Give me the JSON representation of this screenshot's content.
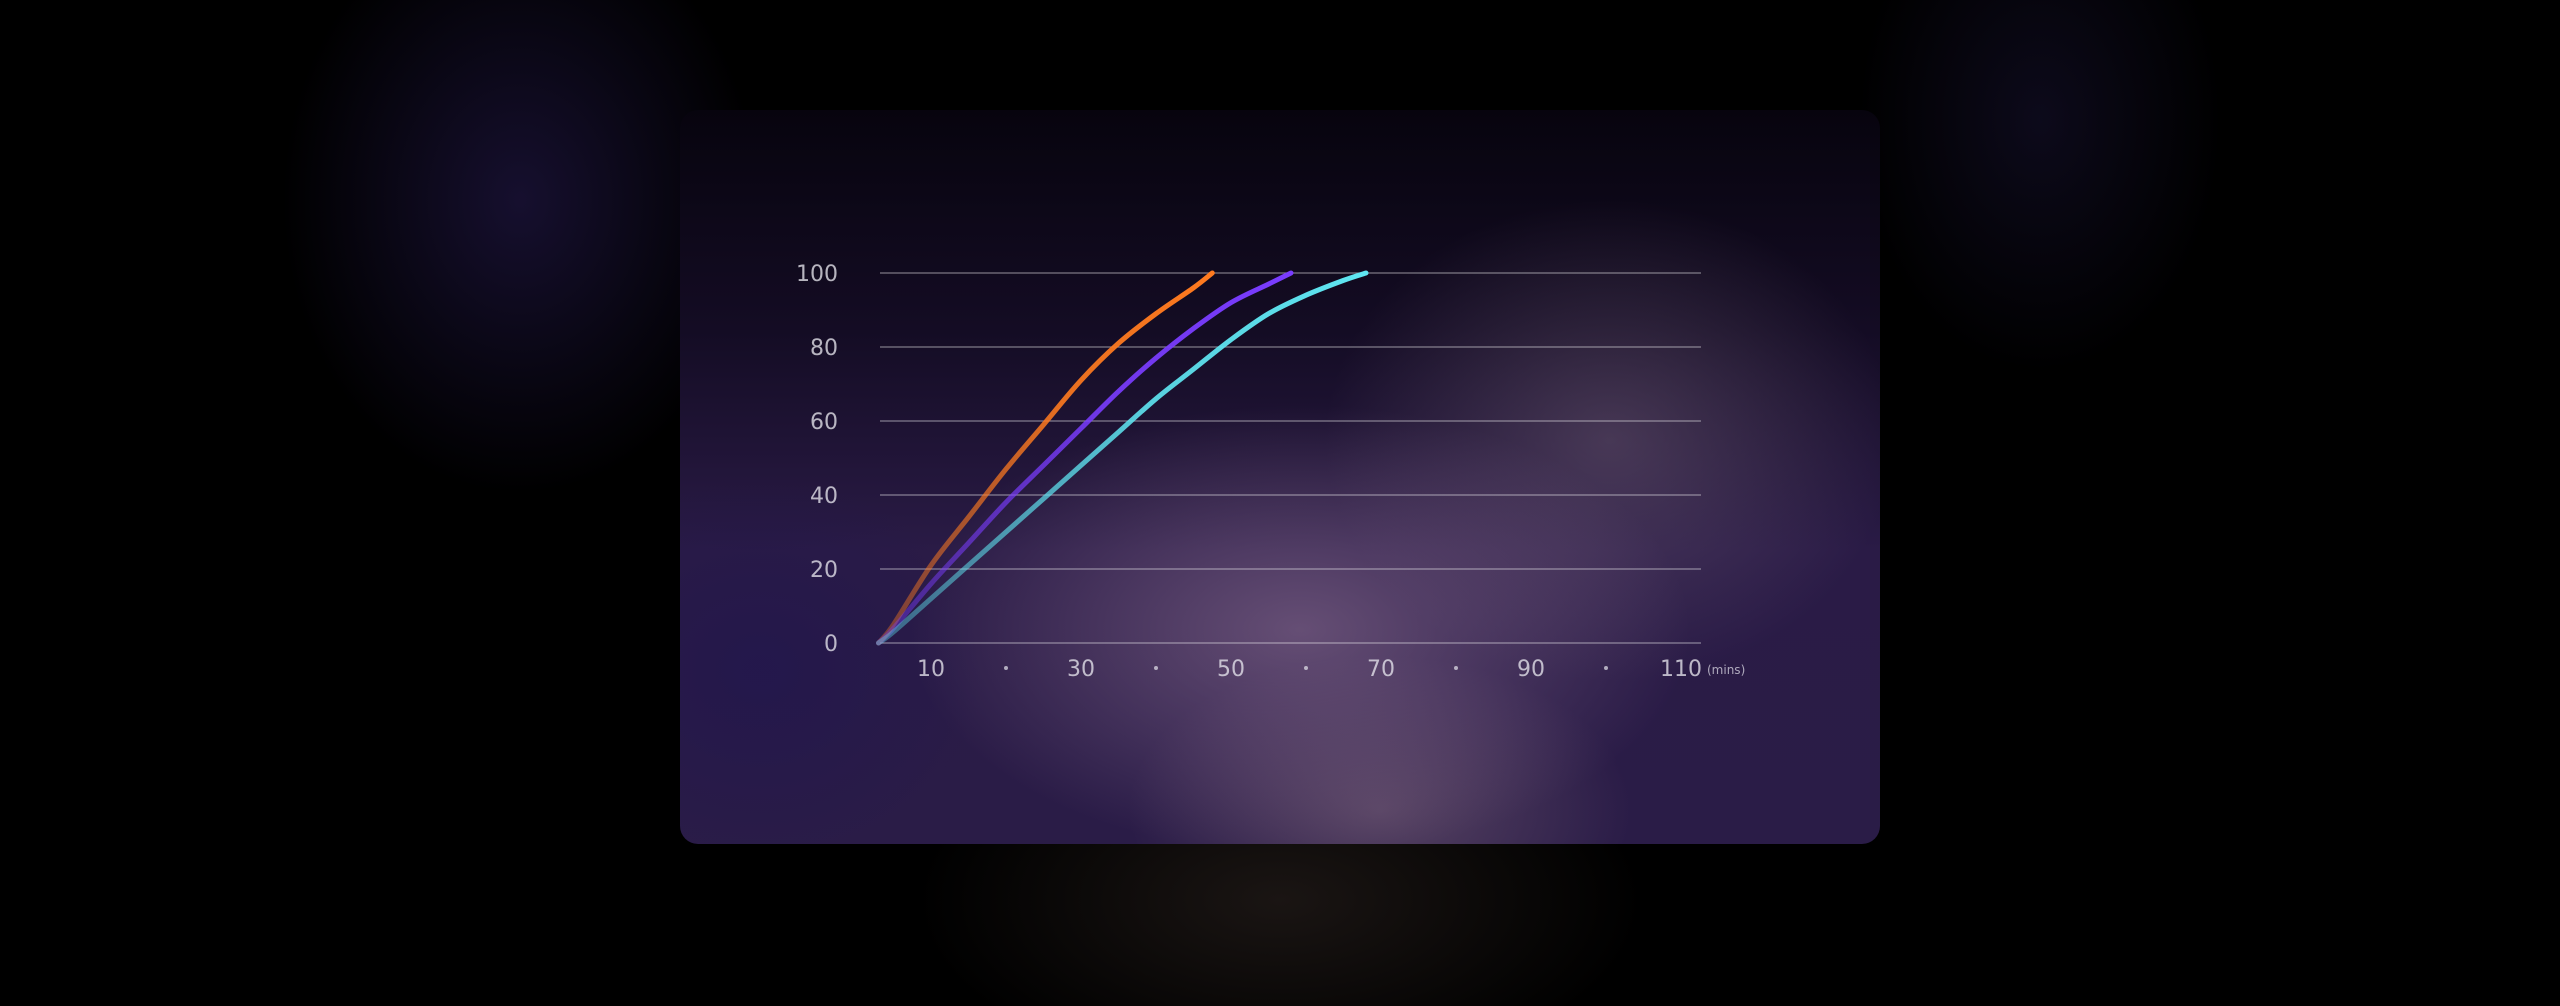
{
  "chart_data": {
    "type": "line",
    "title": "",
    "xlabel": "",
    "ylabel": "",
    "x_unit": "(mins)",
    "xlim": [
      0,
      110
    ],
    "ylim": [
      0,
      100
    ],
    "y_ticks": [
      0,
      20,
      40,
      60,
      80,
      100
    ],
    "x_ticks": [
      "10",
      "·",
      "30",
      "·",
      "50",
      "·",
      "70",
      "·",
      "90",
      "·",
      "110"
    ],
    "x_tick_values": [
      10,
      20,
      30,
      40,
      50,
      60,
      70,
      80,
      90,
      100,
      110
    ],
    "grid": true,
    "legend": "none",
    "series": [
      {
        "color": "#ff7a1f",
        "x": [
          3,
          5,
          10,
          15,
          20,
          25,
          30,
          35,
          40,
          45,
          47.5
        ],
        "y": [
          0,
          5,
          21,
          34,
          47,
          59,
          71,
          81,
          89,
          96,
          100
        ]
      },
      {
        "color": "#7a3cff",
        "x": [
          3,
          5,
          10,
          15,
          20,
          25,
          30,
          35,
          40,
          45,
          50,
          55,
          58
        ],
        "y": [
          0,
          4,
          16,
          27,
          38,
          48,
          58,
          68,
          77,
          85,
          92,
          97,
          100
        ]
      },
      {
        "color": "#5fe6f2",
        "x": [
          3,
          5,
          10,
          15,
          20,
          25,
          30,
          35,
          40,
          45,
          50,
          55,
          60,
          65,
          68
        ],
        "y": [
          0,
          3,
          12,
          21,
          30,
          39,
          48,
          57,
          66,
          74,
          82,
          89,
          94,
          98,
          100
        ]
      }
    ]
  }
}
